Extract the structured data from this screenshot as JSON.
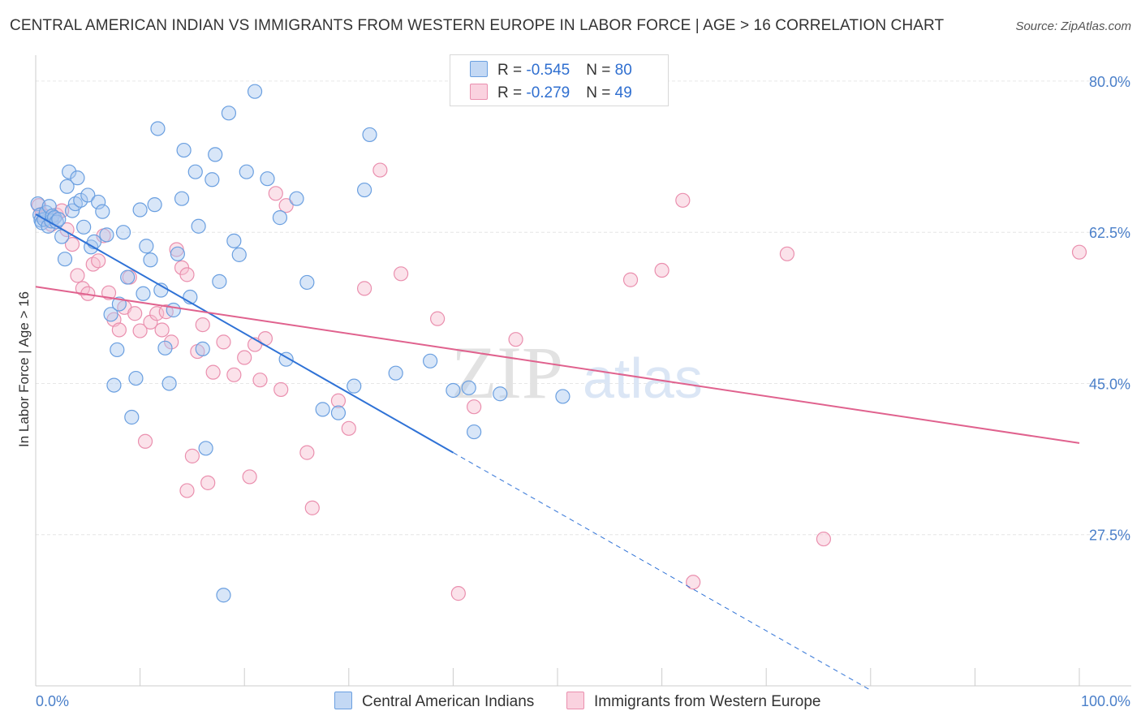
{
  "title": "CENTRAL AMERICAN INDIAN VS IMMIGRANTS FROM WESTERN EUROPE IN LABOR FORCE | AGE > 16 CORRELATION CHART",
  "source": "Source: ZipAtlas.com",
  "colors": {
    "blue_fill": "#a9c8f0",
    "blue_stroke": "#6a9fe0",
    "blue_line": "#2f72d6",
    "pink_fill": "#f6bfd1",
    "pink_stroke": "#ea8fae",
    "pink_line": "#e0628e",
    "grid": "#e6e6e6",
    "axis_text": "#4a7fc9"
  },
  "legend": {
    "series1": {
      "r_label": "R = ",
      "r_value": "-0.545",
      "n_label": "N = ",
      "n_value": "80"
    },
    "series2": {
      "r_label": "R = ",
      "r_value": "-0.279",
      "n_label": "N = ",
      "n_value": "49"
    }
  },
  "watermark": {
    "zip": "ZIP",
    "atlas": "atlas"
  },
  "chart_data": {
    "type": "scatter",
    "title": "CENTRAL AMERICAN INDIAN VS IMMIGRANTS FROM WESTERN EUROPE IN LABOR FORCE | AGE > 16 CORRELATION CHART",
    "xlabel": "",
    "ylabel": "In Labor Force | Age > 16",
    "xlim": [
      0,
      100
    ],
    "ylim": [
      10,
      83
    ],
    "x_tick_labels": [
      "0.0%",
      "100.0%"
    ],
    "y_ticks": [
      27.5,
      45.0,
      62.5,
      80.0
    ],
    "y_tick_labels": [
      "27.5%",
      "45.0%",
      "62.5%",
      "80.0%"
    ],
    "grid": true,
    "legend_position": "top-center",
    "series": [
      {
        "name": "Central American Indians",
        "color": "#6a9fe0",
        "r": -0.545,
        "n": 80,
        "trend": {
          "x": [
            0,
            40
          ],
          "y": [
            64.6,
            37.0
          ],
          "dashed_to": [
            80,
            9.5
          ]
        },
        "points": [
          [
            0.2,
            65.8
          ],
          [
            0.4,
            64.5
          ],
          [
            0.5,
            63.9
          ],
          [
            0.6,
            63.6
          ],
          [
            0.8,
            64.0
          ],
          [
            1.0,
            64.8
          ],
          [
            1.2,
            63.2
          ],
          [
            1.3,
            65.5
          ],
          [
            1.5,
            63.8
          ],
          [
            1.6,
            64.4
          ],
          [
            1.8,
            64.2
          ],
          [
            2.0,
            63.7
          ],
          [
            2.2,
            64.0
          ],
          [
            2.5,
            62.0
          ],
          [
            2.8,
            59.4
          ],
          [
            3.0,
            67.8
          ],
          [
            3.2,
            69.5
          ],
          [
            3.5,
            65.0
          ],
          [
            3.8,
            65.8
          ],
          [
            4.0,
            68.8
          ],
          [
            4.3,
            66.2
          ],
          [
            4.6,
            63.1
          ],
          [
            5.0,
            66.8
          ],
          [
            5.3,
            60.8
          ],
          [
            5.6,
            61.4
          ],
          [
            6.0,
            66.0
          ],
          [
            6.4,
            64.9
          ],
          [
            6.8,
            62.2
          ],
          [
            7.2,
            53.0
          ],
          [
            7.5,
            44.8
          ],
          [
            7.8,
            48.9
          ],
          [
            8.0,
            54.2
          ],
          [
            8.4,
            62.5
          ],
          [
            8.8,
            57.3
          ],
          [
            9.2,
            41.1
          ],
          [
            9.6,
            45.6
          ],
          [
            10.0,
            65.1
          ],
          [
            10.3,
            55.4
          ],
          [
            10.6,
            60.9
          ],
          [
            11.0,
            59.3
          ],
          [
            11.4,
            65.7
          ],
          [
            11.7,
            74.5
          ],
          [
            12.0,
            55.8
          ],
          [
            12.4,
            49.1
          ],
          [
            12.8,
            45.0
          ],
          [
            13.2,
            53.5
          ],
          [
            13.6,
            60.0
          ],
          [
            14.0,
            66.4
          ],
          [
            14.2,
            72.0
          ],
          [
            14.8,
            55.0
          ],
          [
            15.3,
            69.5
          ],
          [
            15.6,
            63.2
          ],
          [
            16.0,
            49.0
          ],
          [
            16.3,
            37.5
          ],
          [
            16.9,
            68.6
          ],
          [
            17.2,
            71.5
          ],
          [
            17.6,
            56.8
          ],
          [
            18.0,
            20.5
          ],
          [
            18.5,
            76.3
          ],
          [
            19.0,
            61.5
          ],
          [
            19.5,
            59.9
          ],
          [
            20.2,
            69.5
          ],
          [
            21.0,
            78.8
          ],
          [
            22.2,
            68.7
          ],
          [
            23.4,
            64.2
          ],
          [
            24.0,
            47.8
          ],
          [
            25.0,
            66.4
          ],
          [
            26.0,
            56.7
          ],
          [
            27.5,
            42.0
          ],
          [
            29.0,
            41.6
          ],
          [
            30.5,
            44.7
          ],
          [
            31.5,
            67.4
          ],
          [
            32.0,
            73.8
          ],
          [
            34.5,
            46.2
          ],
          [
            37.8,
            47.6
          ],
          [
            40.0,
            44.2
          ],
          [
            41.5,
            44.5
          ],
          [
            42.0,
            39.4
          ],
          [
            44.5,
            43.8
          ],
          [
            50.5,
            43.5
          ]
        ]
      },
      {
        "name": "Immigrants from Western Europe",
        "color": "#ea8fae",
        "r": -0.279,
        "n": 49,
        "trend": {
          "x": [
            0,
            100
          ],
          "y": [
            56.2,
            38.1
          ]
        },
        "points": [
          [
            0.3,
            65.6
          ],
          [
            0.6,
            64.6
          ],
          [
            0.9,
            64.3
          ],
          [
            1.2,
            64.0
          ],
          [
            1.5,
            63.4
          ],
          [
            2.0,
            64.5
          ],
          [
            2.5,
            65.0
          ],
          [
            3.0,
            62.8
          ],
          [
            3.5,
            61.1
          ],
          [
            4.0,
            57.5
          ],
          [
            4.5,
            56.0
          ],
          [
            5.0,
            55.4
          ],
          [
            5.5,
            58.8
          ],
          [
            6.0,
            59.2
          ],
          [
            6.5,
            62.1
          ],
          [
            7.0,
            55.5
          ],
          [
            7.5,
            52.4
          ],
          [
            8.0,
            51.2
          ],
          [
            8.5,
            53.8
          ],
          [
            9.0,
            57.3
          ],
          [
            9.5,
            53.1
          ],
          [
            10.0,
            51.1
          ],
          [
            11.0,
            52.1
          ],
          [
            11.6,
            53.1
          ],
          [
            12.1,
            51.2
          ],
          [
            12.5,
            53.3
          ],
          [
            13.0,
            49.8
          ],
          [
            13.5,
            60.5
          ],
          [
            14.0,
            58.4
          ],
          [
            14.5,
            57.6
          ],
          [
            15.5,
            48.7
          ],
          [
            16.0,
            51.8
          ],
          [
            17.0,
            46.3
          ],
          [
            18.0,
            49.8
          ],
          [
            19.0,
            46.0
          ],
          [
            20.0,
            48.0
          ],
          [
            21.0,
            49.5
          ],
          [
            22.0,
            50.2
          ],
          [
            23.0,
            67.0
          ],
          [
            24.0,
            65.6
          ],
          [
            26.0,
            37.0
          ],
          [
            29.0,
            43.0
          ],
          [
            31.5,
            56.0
          ],
          [
            33.0,
            69.7
          ],
          [
            35.0,
            57.7
          ],
          [
            60.0,
            58.1
          ],
          [
            62.0,
            66.2
          ],
          [
            72.0,
            60.0
          ],
          [
            100.0,
            60.2
          ]
        ],
        "extra_points": [
          [
            10.5,
            38.3
          ],
          [
            14.5,
            32.6
          ],
          [
            16.5,
            33.5
          ],
          [
            20.5,
            34.2
          ],
          [
            21.5,
            45.4
          ],
          [
            23.5,
            44.3
          ],
          [
            26.5,
            30.6
          ],
          [
            30.0,
            39.8
          ],
          [
            38.5,
            52.5
          ],
          [
            40.5,
            20.7
          ],
          [
            42.0,
            42.3
          ],
          [
            46.0,
            50.1
          ],
          [
            57.0,
            57.0
          ],
          [
            75.5,
            27.0
          ],
          [
            63.0,
            22.0
          ],
          [
            15.0,
            36.6
          ]
        ]
      }
    ]
  },
  "axis_labels": {
    "y": "In Labor Force | Age > 16",
    "x_left": "0.0%",
    "x_right": "100.0%",
    "y_ticks": [
      "80.0%",
      "62.5%",
      "45.0%",
      "27.5%"
    ]
  },
  "bottom_legend": {
    "series1": "Central American Indians",
    "series2": "Immigrants from Western Europe"
  }
}
